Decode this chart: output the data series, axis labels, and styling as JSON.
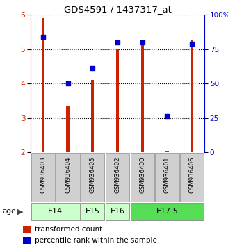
{
  "title": "GDS4591 / 1437317_at",
  "samples": [
    "GSM936403",
    "GSM936404",
    "GSM936405",
    "GSM936402",
    "GSM936400",
    "GSM936401",
    "GSM936406"
  ],
  "bar_values": [
    5.9,
    3.35,
    4.1,
    5.0,
    5.15,
    2.02,
    5.25
  ],
  "scatter_values": [
    5.35,
    4.0,
    4.45,
    5.2,
    5.2,
    3.05,
    5.15
  ],
  "bar_bottom": 2.0,
  "ylim": [
    2.0,
    6.0
  ],
  "y2lim": [
    0,
    100
  ],
  "yticks": [
    2,
    3,
    4,
    5,
    6
  ],
  "y2ticks": [
    0,
    25,
    50,
    75,
    100
  ],
  "y2ticklabels": [
    "0",
    "25",
    "50",
    "75",
    "100%"
  ],
  "bar_color": "#cc2200",
  "scatter_color": "#0000cc",
  "age_groups": [
    {
      "label": "E14",
      "start": 0,
      "end": 2,
      "color": "#ccffcc"
    },
    {
      "label": "E15",
      "start": 2,
      "end": 3,
      "color": "#ccffcc"
    },
    {
      "label": "E16",
      "start": 3,
      "end": 4,
      "color": "#ccffcc"
    },
    {
      "label": "E17.5",
      "start": 4,
      "end": 7,
      "color": "#55dd55"
    }
  ],
  "legend_bar_label": "transformed count",
  "legend_scatter_label": "percentile rank within the sample",
  "ylabel_left_color": "#cc2200",
  "ylabel_right_color": "#0000cc",
  "age_label": "age",
  "bar_width": 0.12,
  "grid_color": "#000000",
  "sample_box_color": "#d0d0d0",
  "sample_box_edge": "#999999"
}
